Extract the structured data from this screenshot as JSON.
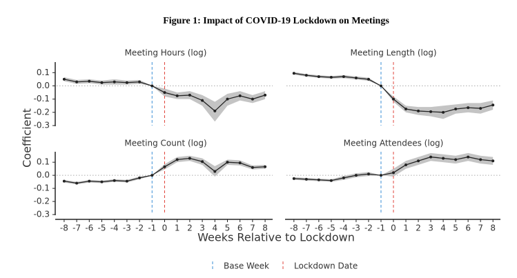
{
  "figure_title": "Figure 1: Impact of COVID-19 Lockdown on Meetings",
  "x_label": "Weeks Relative to Lockdown",
  "y_label": "Coefficient",
  "reference_lines": [
    {
      "name": "Base Week",
      "x": -1,
      "color": "#3a8fd6"
    },
    {
      "name": "Lockdown Date",
      "x": 0,
      "color": "#e0453c"
    }
  ],
  "chart_data": [
    {
      "type": "line",
      "title": "Meeting Hours (log)",
      "color": "#222222",
      "band_color": "#c4c4c4",
      "zero_line": true,
      "x": [
        -8,
        -7,
        -6,
        -5,
        -4,
        -3,
        -2,
        -1,
        0,
        1,
        2,
        3,
        4,
        5,
        6,
        7,
        8
      ],
      "values": [
        0.05,
        0.03,
        0.035,
        0.025,
        0.03,
        0.025,
        0.03,
        0,
        -0.05,
        -0.075,
        -0.07,
        -0.11,
        -0.19,
        -0.1,
        -0.075,
        -0.1,
        -0.07
      ],
      "lower": [
        0.035,
        0.015,
        0.02,
        0.01,
        0.01,
        0.01,
        0.015,
        0,
        -0.08,
        -0.1,
        -0.1,
        -0.15,
        -0.27,
        -0.15,
        -0.11,
        -0.13,
        -0.1
      ],
      "upper": [
        0.065,
        0.045,
        0.05,
        0.04,
        0.05,
        0.04,
        0.045,
        0,
        -0.02,
        -0.05,
        -0.04,
        -0.07,
        -0.12,
        -0.06,
        -0.04,
        -0.07,
        -0.04
      ],
      "xlim": [
        -8.6,
        8.6
      ],
      "ylim": [
        -0.3,
        0.18
      ],
      "yticks": [
        0.1,
        {
          "value": 0,
          "label": "0.0"
        },
        -0.1,
        -0.2,
        -0.3
      ]
    },
    {
      "type": "line",
      "title": "Meeting Length (log)",
      "color": "#222222",
      "band_color": "#c4c4c4",
      "zero_line": true,
      "x": [
        -8,
        -7,
        -6,
        -5,
        -4,
        -3,
        -2,
        -1,
        0,
        1,
        2,
        3,
        4,
        5,
        6,
        7,
        8
      ],
      "values": [
        0.095,
        0.08,
        0.07,
        0.065,
        0.07,
        0.06,
        0.05,
        0,
        -0.1,
        -0.175,
        -0.19,
        -0.195,
        -0.2,
        -0.175,
        -0.165,
        -0.17,
        -0.145
      ],
      "lower": [
        0.085,
        0.07,
        0.06,
        0.055,
        0.058,
        0.048,
        0.038,
        0,
        -0.12,
        -0.2,
        -0.22,
        -0.23,
        -0.25,
        -0.21,
        -0.2,
        -0.21,
        -0.18
      ],
      "upper": [
        0.105,
        0.09,
        0.08,
        0.075,
        0.082,
        0.072,
        0.062,
        0,
        -0.08,
        -0.15,
        -0.16,
        -0.16,
        -0.15,
        -0.14,
        -0.13,
        -0.13,
        -0.11
      ],
      "xlim": [
        -8.6,
        8.6
      ],
      "ylim": [
        -0.3,
        0.18
      ]
    },
    {
      "type": "line",
      "title": "Meeting Count (log)",
      "color": "#222222",
      "band_color": "#c4c4c4",
      "zero_line": true,
      "x": [
        -8,
        -7,
        -6,
        -5,
        -4,
        -3,
        -2,
        -1,
        0,
        1,
        2,
        3,
        4,
        5,
        6,
        7,
        8
      ],
      "values": [
        -0.045,
        -0.06,
        -0.045,
        -0.05,
        -0.04,
        -0.045,
        -0.02,
        0,
        0.065,
        0.12,
        0.13,
        0.105,
        0.03,
        0.1,
        0.095,
        0.06,
        0.065
      ],
      "lower": [
        -0.055,
        -0.07,
        -0.055,
        -0.06,
        -0.05,
        -0.055,
        -0.03,
        0,
        0.045,
        0.1,
        0.11,
        0.08,
        -0.01,
        0.08,
        0.075,
        0.045,
        0.05
      ],
      "upper": [
        -0.035,
        -0.05,
        -0.035,
        -0.04,
        -0.03,
        -0.035,
        -0.01,
        0,
        0.085,
        0.14,
        0.15,
        0.13,
        0.07,
        0.12,
        0.115,
        0.075,
        0.08
      ],
      "xlim": [
        -8.6,
        8.6
      ],
      "ylim": [
        -0.3,
        0.18
      ],
      "yticks": [
        0.1,
        {
          "value": 0,
          "label": "0.0"
        },
        -0.1,
        -0.2,
        -0.3
      ],
      "xticks": [
        -8,
        -7,
        -6,
        -5,
        -4,
        -3,
        -2,
        -1,
        0,
        1,
        2,
        3,
        4,
        5,
        6,
        7,
        8
      ]
    },
    {
      "type": "line",
      "title": "Meeting Attendees (log)",
      "color": "#222222",
      "band_color": "#c4c4c4",
      "zero_line": true,
      "x": [
        -8,
        -7,
        -6,
        -5,
        -4,
        -3,
        -2,
        -1,
        0,
        1,
        2,
        3,
        4,
        5,
        6,
        7,
        8
      ],
      "values": [
        -0.025,
        -0.03,
        -0.035,
        -0.04,
        -0.02,
        0,
        0.01,
        0,
        0.02,
        0.08,
        0.11,
        0.14,
        0.13,
        0.12,
        0.14,
        0.12,
        0.11
      ],
      "lower": [
        -0.035,
        -0.04,
        -0.045,
        -0.05,
        -0.035,
        -0.015,
        -0.005,
        0,
        -0.01,
        0.05,
        0.08,
        0.11,
        0.1,
        0.09,
        0.11,
        0.09,
        0.08
      ],
      "upper": [
        -0.015,
        -0.02,
        -0.025,
        -0.03,
        -0.005,
        0.015,
        0.025,
        0,
        0.05,
        0.11,
        0.14,
        0.17,
        0.16,
        0.15,
        0.17,
        0.15,
        0.14
      ],
      "xlim": [
        -8.6,
        8.6
      ],
      "ylim": [
        -0.3,
        0.18
      ],
      "xticks": [
        -8,
        -7,
        -6,
        -5,
        -4,
        -3,
        -2,
        -1,
        0,
        1,
        2,
        3,
        4,
        5,
        6,
        7,
        8
      ]
    }
  ]
}
